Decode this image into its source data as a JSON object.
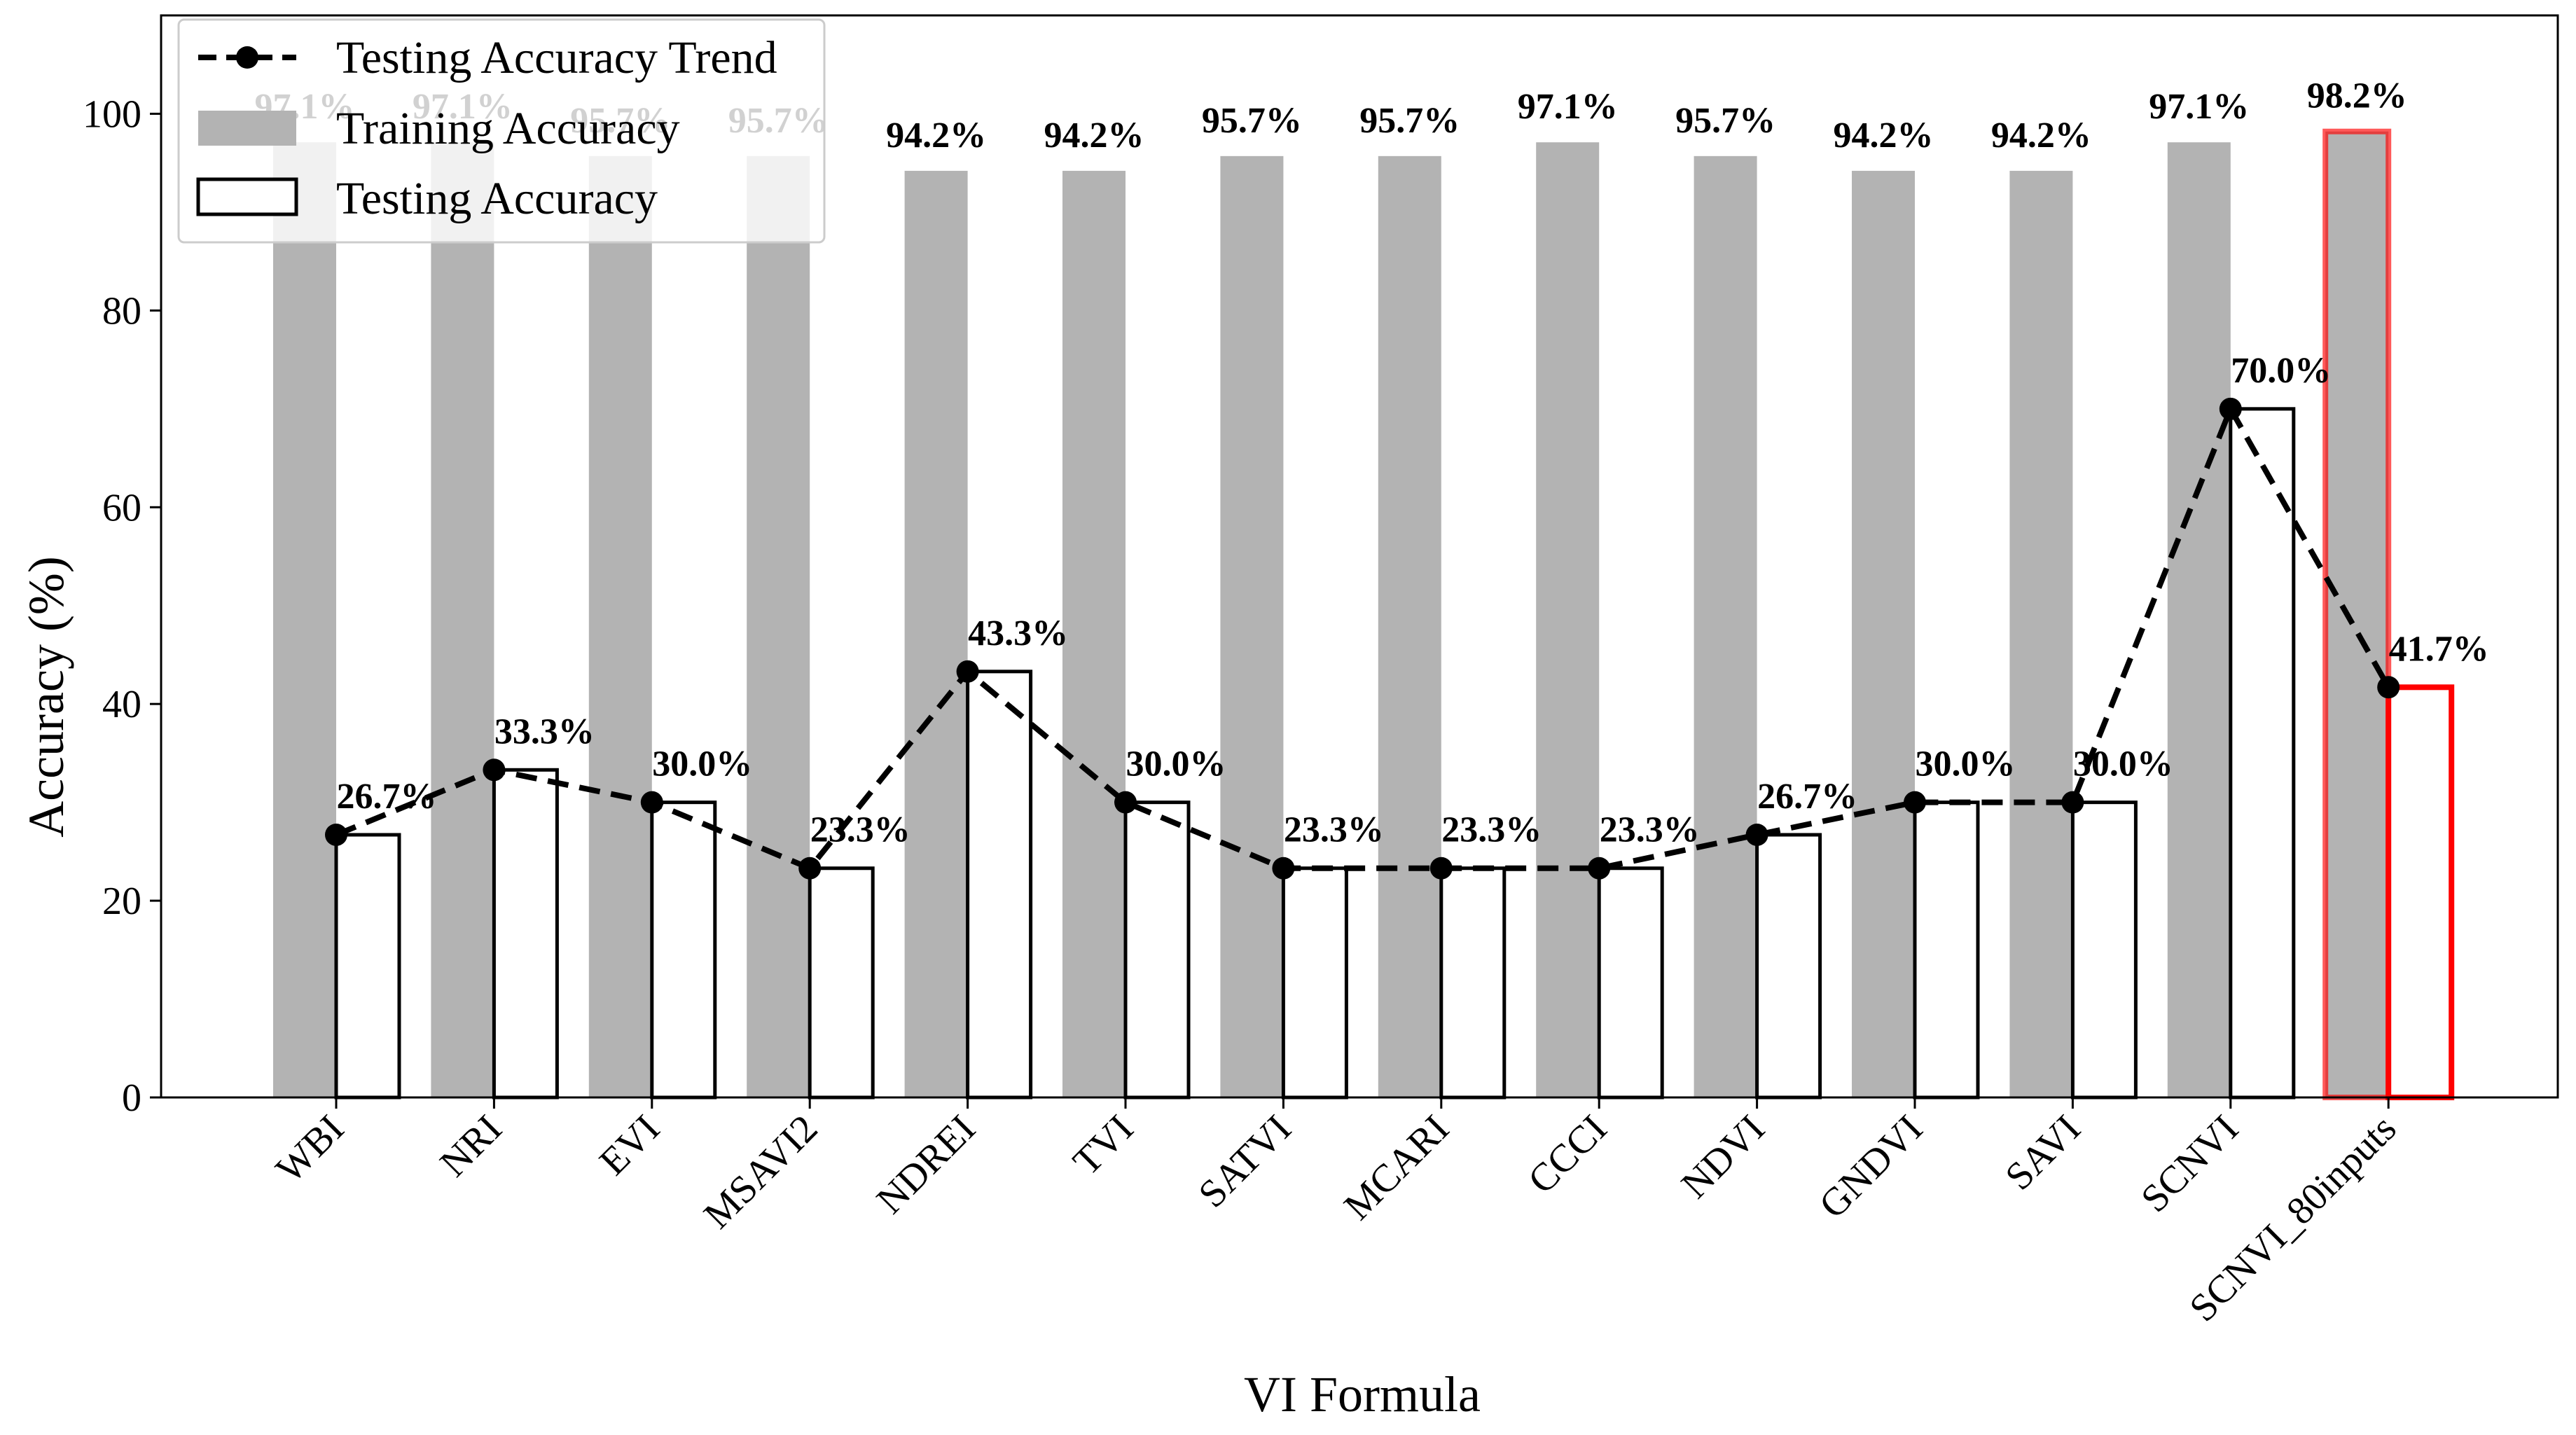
{
  "chart_data": {
    "type": "bar",
    "title": "",
    "xlabel": "VI Formula",
    "ylabel": "Accuracy (%)",
    "ylim": [
      0,
      110
    ],
    "yticks": [
      0,
      20,
      40,
      60,
      80,
      100
    ],
    "grid": false,
    "legend_position": "top-left",
    "categories": [
      "WBI",
      "NRI",
      "EVI",
      "MSAVI2",
      "NDREI",
      "TVI",
      "SATVI",
      "MCARI",
      "CCCI",
      "NDVI",
      "GNDVI",
      "SAVI",
      "SCNVI",
      "SCNVI_80inputs"
    ],
    "series": [
      {
        "name": "Training Accuracy",
        "kind": "bar",
        "values": [
          97.1,
          97.1,
          95.7,
          95.7,
          94.2,
          94.2,
          95.7,
          95.7,
          97.1,
          95.7,
          94.2,
          94.2,
          97.1,
          98.2
        ],
        "labels": [
          "97.1%",
          "97.1%",
          "95.7%",
          "95.7%",
          "94.2%",
          "94.2%",
          "95.7%",
          "95.7%",
          "97.1%",
          "95.7%",
          "94.2%",
          "94.2%",
          "97.1%",
          "98.2%"
        ],
        "color": "#b3b3b3"
      },
      {
        "name": "Testing Accuracy",
        "kind": "bar",
        "values": [
          26.7,
          33.3,
          30.0,
          23.3,
          43.3,
          30.0,
          23.3,
          23.3,
          23.3,
          26.7,
          30.0,
          30.0,
          70.0,
          41.7
        ],
        "labels": [
          "26.7%",
          "33.3%",
          "30.0%",
          "23.3%",
          "43.3%",
          "30.0%",
          "23.3%",
          "23.3%",
          "23.3%",
          "26.7%",
          "30.0%",
          "30.0%",
          "70.0%",
          "41.7%"
        ],
        "color": "#ffffff",
        "edge_color": "#000000"
      },
      {
        "name": "Testing Accuracy Trend",
        "kind": "line",
        "values": [
          26.7,
          33.3,
          30.0,
          23.3,
          43.3,
          30.0,
          23.3,
          23.3,
          23.3,
          26.7,
          30.0,
          30.0,
          70.0,
          41.7
        ],
        "color": "#000000",
        "style": "dashed"
      }
    ],
    "highlight": {
      "category": "SCNVI_80inputs",
      "edge_color": "#ff0000"
    }
  }
}
